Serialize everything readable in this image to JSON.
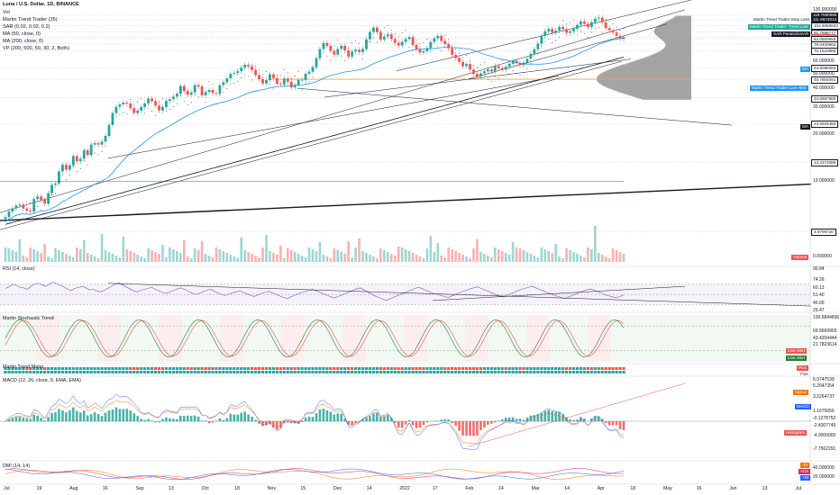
{
  "header": {
    "symbol": "Luna / U.S. Dollar, 1D, BINANCE",
    "lines": [
      "Vol",
      "Martin Trend Trader (35)",
      "SAR (0.02, 0.02, 0.2)",
      "MA (50, close, 0)",
      "MA (200, close, 0)",
      "VP (200, 500, 50, 30, 2, Both)"
    ]
  },
  "colors": {
    "up": "#26a69a",
    "down": "#ef5350",
    "ma50": "#2196f3",
    "ma200": "#131722",
    "rsi": "#7e57c2",
    "stoch_k": "#2e7d32",
    "stoch_d": "#ef5350",
    "macd": "#2962ff",
    "signal": "#ff6d00",
    "vp": "#9e9e9e",
    "poc": "#f6a623",
    "trendline": "#131722"
  },
  "chart_data": [
    {
      "type": "candlestick",
      "title": "Luna / U.S. Dollar, 1D, BINANCE",
      "yscale": "log",
      "ylim": [
        0,
        130
      ],
      "x_tick_labels": [
        "Jul",
        "19",
        "Aug",
        "16",
        "Sep",
        "13",
        "Oct",
        "18",
        "Nov",
        "15",
        "Dec",
        "14",
        "2022",
        "17",
        "Feb",
        "14",
        "Mar",
        "14",
        "Apr",
        "18",
        "May",
        "16",
        "Jun",
        "13",
        "Jul"
      ],
      "y_tick_labels": [
        "130.000000",
        "120.000000",
        "110.000000",
        "100.000000",
        "90.000000",
        "80.000000",
        "70.000000",
        "60.000000",
        "50.000000",
        "40.000000",
        "30.000000",
        "20.000000",
        "10.000000",
        "0.000000"
      ],
      "price_tags": [
        {
          "label": "119.7690986",
          "bg": "#131722"
        },
        {
          "label": "111.6674013",
          "bg": "#131722"
        },
        {
          "label": "102.6068603",
          "bg": "#ffffff"
        },
        {
          "label": "92.7886777",
          "bg": "#ffffff"
        },
        {
          "label": "86.1351437",
          "bg": "#ef5350"
        },
        {
          "label": "07:01:10",
          "bg": "#ef5350"
        },
        {
          "label": "84.0500655",
          "bg": "#ffffff"
        },
        {
          "label": "78.0400562",
          "bg": "#ffffff"
        },
        {
          "label": "70.1523885",
          "bg": "#ffffff"
        },
        {
          "label": "54.5095053",
          "bg": "#ffffff"
        },
        {
          "label": "45.7804091",
          "bg": "#ffffff"
        },
        {
          "label": "34.6687889",
          "bg": "#ffffff"
        },
        {
          "label": "23.5934480",
          "bg": "#ffffff"
        },
        {
          "label": "13.2274088",
          "bg": "#ffffff"
        },
        {
          "label": "4.6799720",
          "bg": "#ffffff"
        }
      ],
      "annotations": [
        "Martin Trend Trader:Stop Loss",
        "Martin Trend Trader: Trend Line",
        "SAR:ParabolicSAR",
        "Martin Trend Trader:Live Alert",
        "MA",
        "MA",
        "Volume"
      ],
      "closes": [
        5.8,
        6.3,
        6.6,
        6.9,
        7.0,
        6.6,
        6.4,
        6.3,
        7.6,
        7.9,
        7.5,
        7.1,
        8.3,
        9.4,
        9.6,
        11.5,
        12.7,
        11.8,
        12.6,
        14.5,
        13.4,
        13.9,
        15.8,
        14.7,
        17.2,
        17.6,
        17.2,
        18.0,
        19.6,
        23.1,
        27.6,
        30.3,
        31.4,
        32.3,
        31.8,
        29.7,
        27.6,
        28.6,
        30.2,
        31.9,
        34.3,
        33.0,
        30.9,
        28.7,
        30.2,
        33.1,
        34.0,
        35.3,
        36.9,
        41.4,
        38.4,
        36.3,
        37.6,
        42.0,
        41.0,
        36.0,
        37.8,
        39.0,
        37.2,
        36.8,
        41.9,
        43.8,
        46.4,
        49.7,
        50.3,
        51.7,
        54.5,
        56.9,
        55.6,
        52.7,
        48.8,
        45.9,
        43.0,
        45.2,
        49.4,
        46.6,
        42.9,
        42.4,
        46.3,
        44.2,
        40.5,
        42.1,
        45.3,
        45.4,
        49.8,
        51.3,
        55.0,
        63.0,
        72.0,
        79.0,
        75.5,
        70.2,
        66.3,
        72.2,
        75.6,
        70.6,
        64.4,
        69.4,
        71.3,
        68.9,
        72.3,
        83.3,
        93.2,
        99.5,
        92.9,
        83.1,
        87.0,
        89.8,
        83.9,
        79.0,
        75.9,
        80.4,
        83.7,
        86.3,
        76.7,
        72.1,
        68.4,
        69.7,
        73.2,
        80.2,
        84.6,
        87.8,
        81.5,
        77.6,
        72.9,
        66.1,
        63.0,
        59.5,
        55.7,
        57.6,
        53.0,
        49.6,
        47.8,
        50.0,
        51.6,
        53.1,
        51.5,
        55.8,
        54.1,
        53.0,
        55.3,
        57.7,
        60.5,
        58.3,
        56.7,
        58.8,
        62.3,
        67.1,
        71.8,
        78.2,
        87.5,
        93.9,
        97.5,
        92.1,
        95.1,
        100.5,
        97.1,
        91.9,
        94.1,
        97.8,
        103.6,
        109.1,
        105.2,
        100.2,
        107.8,
        113.9,
        115.6,
        107.6,
        98.6,
        95.5,
        92.3,
        88.0,
        84.0,
        86.1
      ]
    },
    {
      "type": "line",
      "title": "RSI (14, close)",
      "series": [
        {
          "name": "RSI",
          "values": [
            62,
            65,
            70,
            68,
            64,
            63,
            60,
            66,
            71,
            72,
            69,
            66,
            70,
            74,
            71,
            68,
            65,
            60,
            58,
            62,
            64,
            66,
            63,
            59,
            60,
            57,
            55,
            58,
            62,
            66,
            70,
            73,
            69,
            65,
            61,
            57,
            55,
            58,
            60,
            62,
            64,
            60,
            57,
            54,
            52,
            55,
            58,
            61,
            63,
            60,
            56,
            53,
            50,
            52,
            55,
            58,
            60,
            57,
            53,
            50,
            48,
            50,
            53,
            55,
            57,
            54,
            51,
            48,
            46,
            49,
            52,
            54,
            56,
            53,
            50,
            47,
            44,
            42,
            45,
            48,
            51,
            54,
            56,
            58,
            60,
            57,
            54,
            51,
            48,
            45,
            43,
            46,
            49,
            52,
            55,
            58,
            61,
            63,
            59,
            55,
            51,
            47,
            44,
            41,
            38,
            41,
            44,
            47,
            50,
            53,
            56,
            59,
            62,
            64,
            61,
            58,
            55,
            52,
            50,
            48,
            46,
            44,
            47,
            50,
            53,
            56,
            58,
            61,
            63,
            65,
            62,
            59,
            56,
            53,
            50,
            47,
            45,
            48,
            51,
            54,
            57,
            60,
            62,
            64,
            66,
            63,
            60,
            57,
            54,
            51,
            48,
            46,
            44,
            42,
            45,
            48,
            51,
            54,
            57,
            59,
            61,
            58,
            55,
            52,
            49,
            47,
            45,
            43,
            46,
            49
          ]
        }
      ],
      "levels": [
        70,
        30
      ],
      "axis_labels": [
        "90.84",
        "74.26",
        "60.13",
        "51.40",
        "40.00",
        "29.47"
      ]
    },
    {
      "type": "line",
      "title": "Martin Stochastic Trend",
      "series": [
        {
          "name": "K",
          "values": []
        },
        {
          "name": "D",
          "values": []
        }
      ],
      "axis_labels": [
        "100.6844836",
        "69.8669903",
        "43.4204444",
        "21.7823614"
      ],
      "tags": [
        "Live Alert",
        "Live Alert"
      ]
    },
    {
      "type": "heatmap",
      "title": "Martin Trend Meter",
      "tags": [
        "Plus",
        "Five"
      ]
    },
    {
      "type": "bar",
      "title": "MACD (12, 26, close, 9, EMA, EMA)",
      "axis_labels": [
        "6.9747539",
        "5.2047354",
        "3.2264737",
        "1.1675056",
        "-0.1278752",
        "-2.4307745",
        "-4.0000000",
        "-7.7562291"
      ],
      "tags": [
        "Signal",
        "MACD",
        "Histogram"
      ]
    },
    {
      "type": "line",
      "title": "DMI (14, 14)",
      "axis_labels": [
        "40.000000",
        "20.000000"
      ],
      "tags": [
        "-DI",
        "ADX",
        "+DI"
      ]
    }
  ]
}
